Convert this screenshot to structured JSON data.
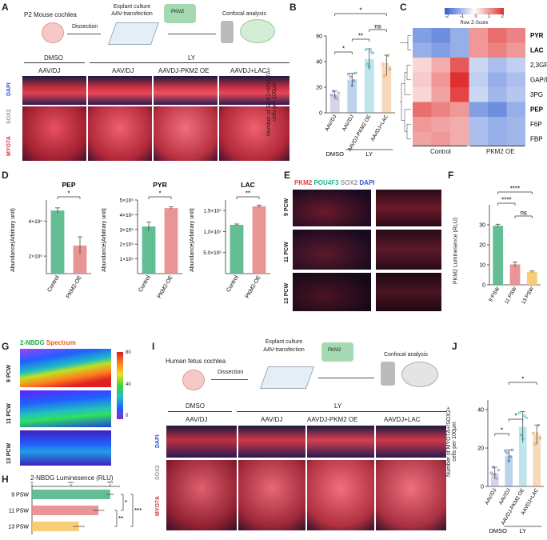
{
  "panelA": {
    "letter": "A",
    "sample": "P2 Mouse cochlea",
    "step1": "Dissection",
    "step2a": "Explant culture",
    "step2b": "AAV-transfection",
    "step3": "Confocal analysis",
    "vial_label": "PKM2",
    "group_dmso": "DMSO",
    "group_ly": "LY",
    "cond1": "AAV/DJ",
    "cond2": "AAV/DJ",
    "cond3": "AAVDJ-PKM2 OE",
    "cond4": "AAVDJ+LAC",
    "stain_dapi": "DAPI",
    "stain_sox2": "SOX2",
    "stain_myo7a": "MYO7A"
  },
  "panelB": {
    "letter": "B",
    "ylabel1": "Number of SOX2+MYO7A+",
    "ylabel2": "cells per 100μm",
    "sig1": "*",
    "sig2": "**",
    "sig3": "ns",
    "sig4": "*",
    "group_dmso": "DMSO",
    "group_ly": "LY"
  },
  "panelC": {
    "letter": "C",
    "scale_label": "Row Z-Score",
    "scale_ticks": [
      "-2",
      "-1",
      "0",
      "1",
      "2"
    ],
    "group_control": "Control",
    "group_pkm2": "PKM2 OE"
  },
  "panelD": {
    "letter": "D",
    "ylabel": "Abundance(Arbitrary unit)",
    "pep_title": "PEP",
    "pyr_title": "PYR",
    "lac_title": "LAC",
    "pep_sig": "*",
    "pyr_sig": "*",
    "lac_sig": "**",
    "pep_ticks": [
      "2×10⁵",
      "4×10⁵"
    ],
    "pyr_ticks": [
      "1×10⁵",
      "2×10⁵",
      "3×10⁵",
      "4×10⁵",
      "5×10⁵"
    ],
    "lac_ticks": [
      "5.0×10⁶",
      "1.0×10⁷",
      "1.5×10⁷"
    ]
  },
  "panelE": {
    "letter": "E",
    "stain_pkm2": "PKM2",
    "stain_pou4f3": "POU4F3",
    "stain_sox2": "SOX2",
    "stain_dapi": "DAPI",
    "row1": "9 PCW",
    "row2": "11 PCW",
    "row3": "13 PCW"
  },
  "panelF": {
    "letter": "F",
    "ylabel": "PKM2 Luminesence (RLU)",
    "sig1": "****",
    "sig2": "****",
    "sig3": "ns"
  },
  "panelG": {
    "letter": "G",
    "stain_nbdg": "2-NBDG",
    "stain_spectrum": "Spectrum",
    "colorbar_ticks": [
      "80",
      "40",
      "0"
    ],
    "row1": "9 PCW",
    "row2": "11 PCW",
    "row3": "13 PCW"
  },
  "panelH": {
    "letter": "H",
    "title": "2-NBDG Luminesence  (RLU)",
    "sig1": "*",
    "sig2": "**",
    "sig3": "***"
  },
  "panelI": {
    "letter": "I",
    "sample": "Human fetus cochlea",
    "step1": "Dissection",
    "step2a": "Explant culture",
    "step2b": "AAV-transfection",
    "step3": "Confocal analysis",
    "vial_label": "PKM2",
    "group_dmso": "DMSO",
    "group_ly": "LY",
    "cond1": "AAV/DJ",
    "cond2": "AAV/DJ",
    "cond3": "AAVDJ-PKM2 OE",
    "cond4": "AAVDJ+LAC",
    "stain_dapi": "DAPI",
    "stain_sox2": "SOX2",
    "stain_myo7a": "MYO7A"
  },
  "panelJ": {
    "letter": "J",
    "ylabel1": "Number of MYO7A+/SOX2+",
    "ylabel2": "cells per 100μm",
    "sig1": "*",
    "sig2": "*",
    "sig3": "*",
    "group_dmso": "DMSO",
    "group_ly": "LY"
  },
  "chart_data": [
    {
      "id": "B",
      "type": "bar",
      "categories": [
        "AAV/DJ",
        "AAV/DJ",
        "AAVDJ-PKM2 OE",
        "AAVDJ+LAC"
      ],
      "values": [
        14,
        26,
        42,
        37
      ],
      "errors": [
        3,
        5,
        8,
        8
      ],
      "colors": [
        "#8e7cc3",
        "#3d85c6",
        "#45b5c4",
        "#e69138"
      ],
      "ylim": [
        0,
        60
      ],
      "yticks": [
        0,
        20,
        40,
        60
      ]
    },
    {
      "id": "C",
      "type": "heatmap",
      "rows": [
        "PYR",
        "LAC",
        "2,3GP",
        "GAP/DHAP",
        "3PG",
        "PEP",
        "F6P",
        "FBP"
      ],
      "bold_rows": [
        "PYR",
        "LAC",
        "PEP"
      ],
      "columns": 6,
      "values": [
        [
          -1.2,
          -1.4,
          -1.0,
          1.0,
          1.4,
          1.2
        ],
        [
          -1.0,
          -1.2,
          -1.0,
          1.0,
          1.2,
          1.0
        ],
        [
          0.4,
          0.8,
          1.6,
          -0.5,
          -0.8,
          -0.6
        ],
        [
          0.5,
          1.0,
          2.0,
          -0.6,
          -1.0,
          -0.8
        ],
        [
          0.4,
          0.9,
          1.8,
          -0.5,
          -0.9,
          -0.7
        ],
        [
          1.4,
          1.2,
          1.0,
          -1.2,
          -1.4,
          -1.0
        ],
        [
          1.0,
          0.9,
          0.8,
          -0.8,
          -1.0,
          -0.9
        ],
        [
          0.9,
          1.0,
          0.8,
          -0.8,
          -1.0,
          -0.9
        ]
      ]
    },
    {
      "id": "D-PEP",
      "type": "bar",
      "categories": [
        "Control",
        "PKM2-OE"
      ],
      "values": [
        460000,
        260000
      ],
      "errors": [
        15000,
        50000
      ],
      "colors": [
        "#52b788",
        "#e88a8a"
      ],
      "ylim": [
        100000,
        520000
      ]
    },
    {
      "id": "D-PYR",
      "type": "bar",
      "categories": [
        "Control",
        "PKM2-OE"
      ],
      "values": [
        320000,
        445000
      ],
      "errors": [
        30000,
        8000
      ],
      "colors": [
        "#52b788",
        "#e88a8a"
      ],
      "ylim": [
        0,
        500000
      ]
    },
    {
      "id": "D-LAC",
      "type": "bar",
      "categories": [
        "Control",
        "PKM2-OE"
      ],
      "values": [
        11600000,
        16000000
      ],
      "errors": [
        200000,
        300000
      ],
      "colors": [
        "#52b788",
        "#e88a8a"
      ],
      "ylim": [
        0,
        17500000
      ]
    },
    {
      "id": "F",
      "type": "bar",
      "categories": [
        "9 PSW",
        "11 PSW",
        "13 PSW"
      ],
      "values": [
        29.5,
        10.2,
        6.5
      ],
      "errors": [
        0.8,
        1.2,
        0.4
      ],
      "colors": [
        "#52b788",
        "#e88a8a",
        "#f6c86b"
      ],
      "ylim": [
        0,
        40
      ],
      "yticks": [
        0,
        10,
        20,
        30
      ],
      "ylabel": "PKM2 Luminesence (RLU)"
    },
    {
      "id": "H",
      "type": "bar",
      "orientation": "horizontal",
      "categories": [
        "9 PSW",
        "11 PSW",
        "13 PSW"
      ],
      "values": [
        40,
        34,
        24
      ],
      "errors": [
        2,
        3,
        3
      ],
      "colors": [
        "#52b788",
        "#e88a8a",
        "#f6c86b"
      ],
      "xlim": [
        0,
        45
      ],
      "xticks": [
        0,
        20,
        40
      ]
    },
    {
      "id": "J",
      "type": "bar",
      "categories": [
        "AAV/DJ",
        "AAV/DJ",
        "AAVDJ-PKM2 OE",
        "AAVDJ+LAC"
      ],
      "values": [
        7,
        16,
        31,
        27
      ],
      "errors": [
        3,
        3,
        8,
        5
      ],
      "colors": [
        "#8e7cc3",
        "#3d85c6",
        "#45b5c4",
        "#e69138"
      ],
      "ylim": [
        0,
        45
      ],
      "yticks": [
        0,
        20,
        40
      ]
    }
  ]
}
